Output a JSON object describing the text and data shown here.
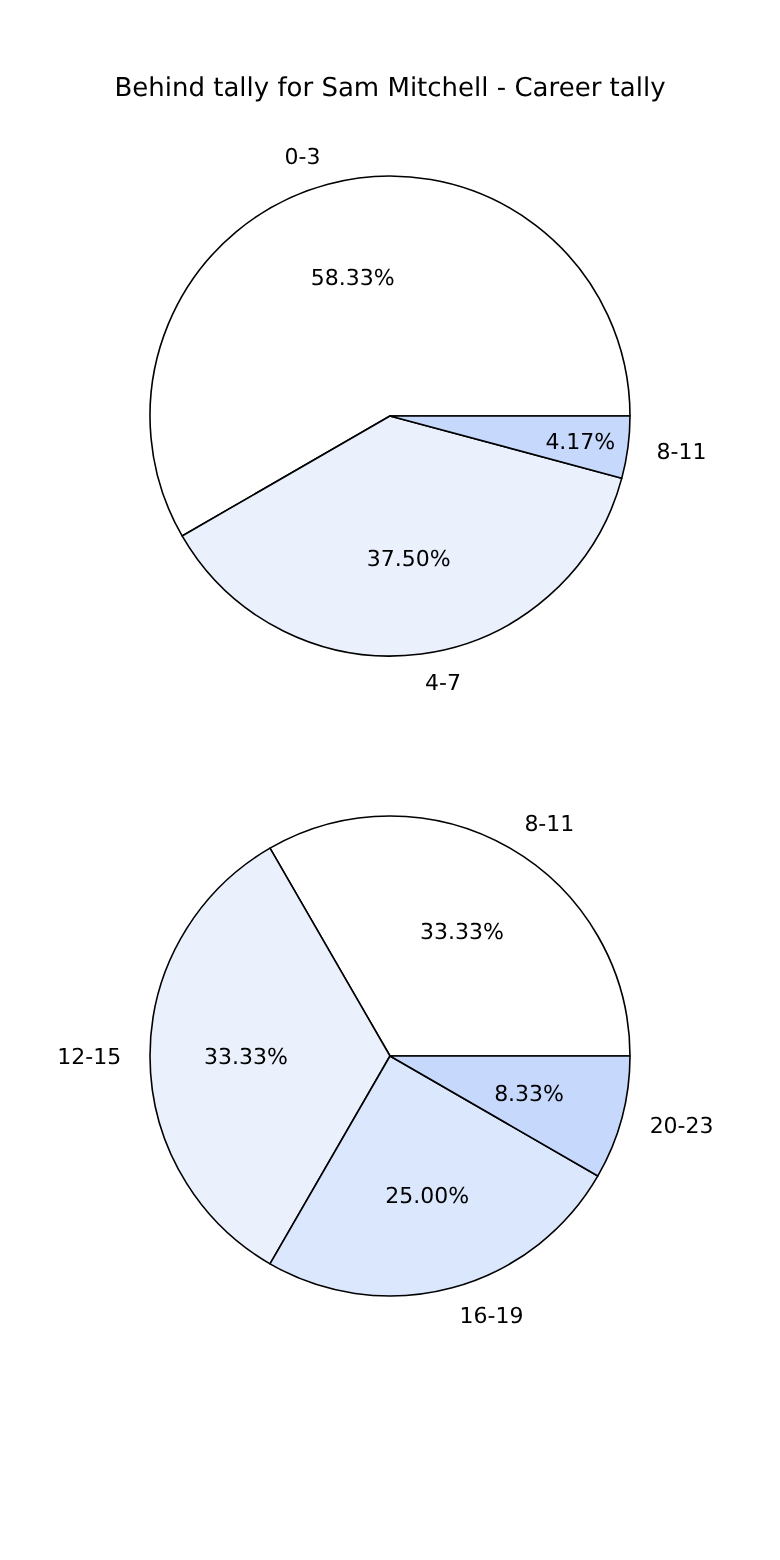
{
  "chart_data": [
    {
      "type": "pie",
      "title": "Behind tally for Sam Mitchell - Career tally",
      "categories": [
        "0-3",
        "4-7",
        "8-11"
      ],
      "values": [
        58.33,
        37.5,
        4.17
      ],
      "colors": [
        "#ffffff",
        "#eaf1fd",
        "#c6d9fd"
      ],
      "value_labels": [
        "58.33%",
        "37.50%",
        "4.17%"
      ]
    },
    {
      "type": "pie",
      "categories": [
        "8-11",
        "12-15",
        "16-19",
        "20-23"
      ],
      "values": [
        33.33,
        33.33,
        25,
        8.33
      ],
      "colors": [
        "#ffffff",
        "#eaf1fd",
        "#dbe7fc",
        "#c6d9fd"
      ],
      "value_labels": [
        "33.33%",
        "33.33%",
        "25.00%",
        "8.33%"
      ]
    }
  ]
}
